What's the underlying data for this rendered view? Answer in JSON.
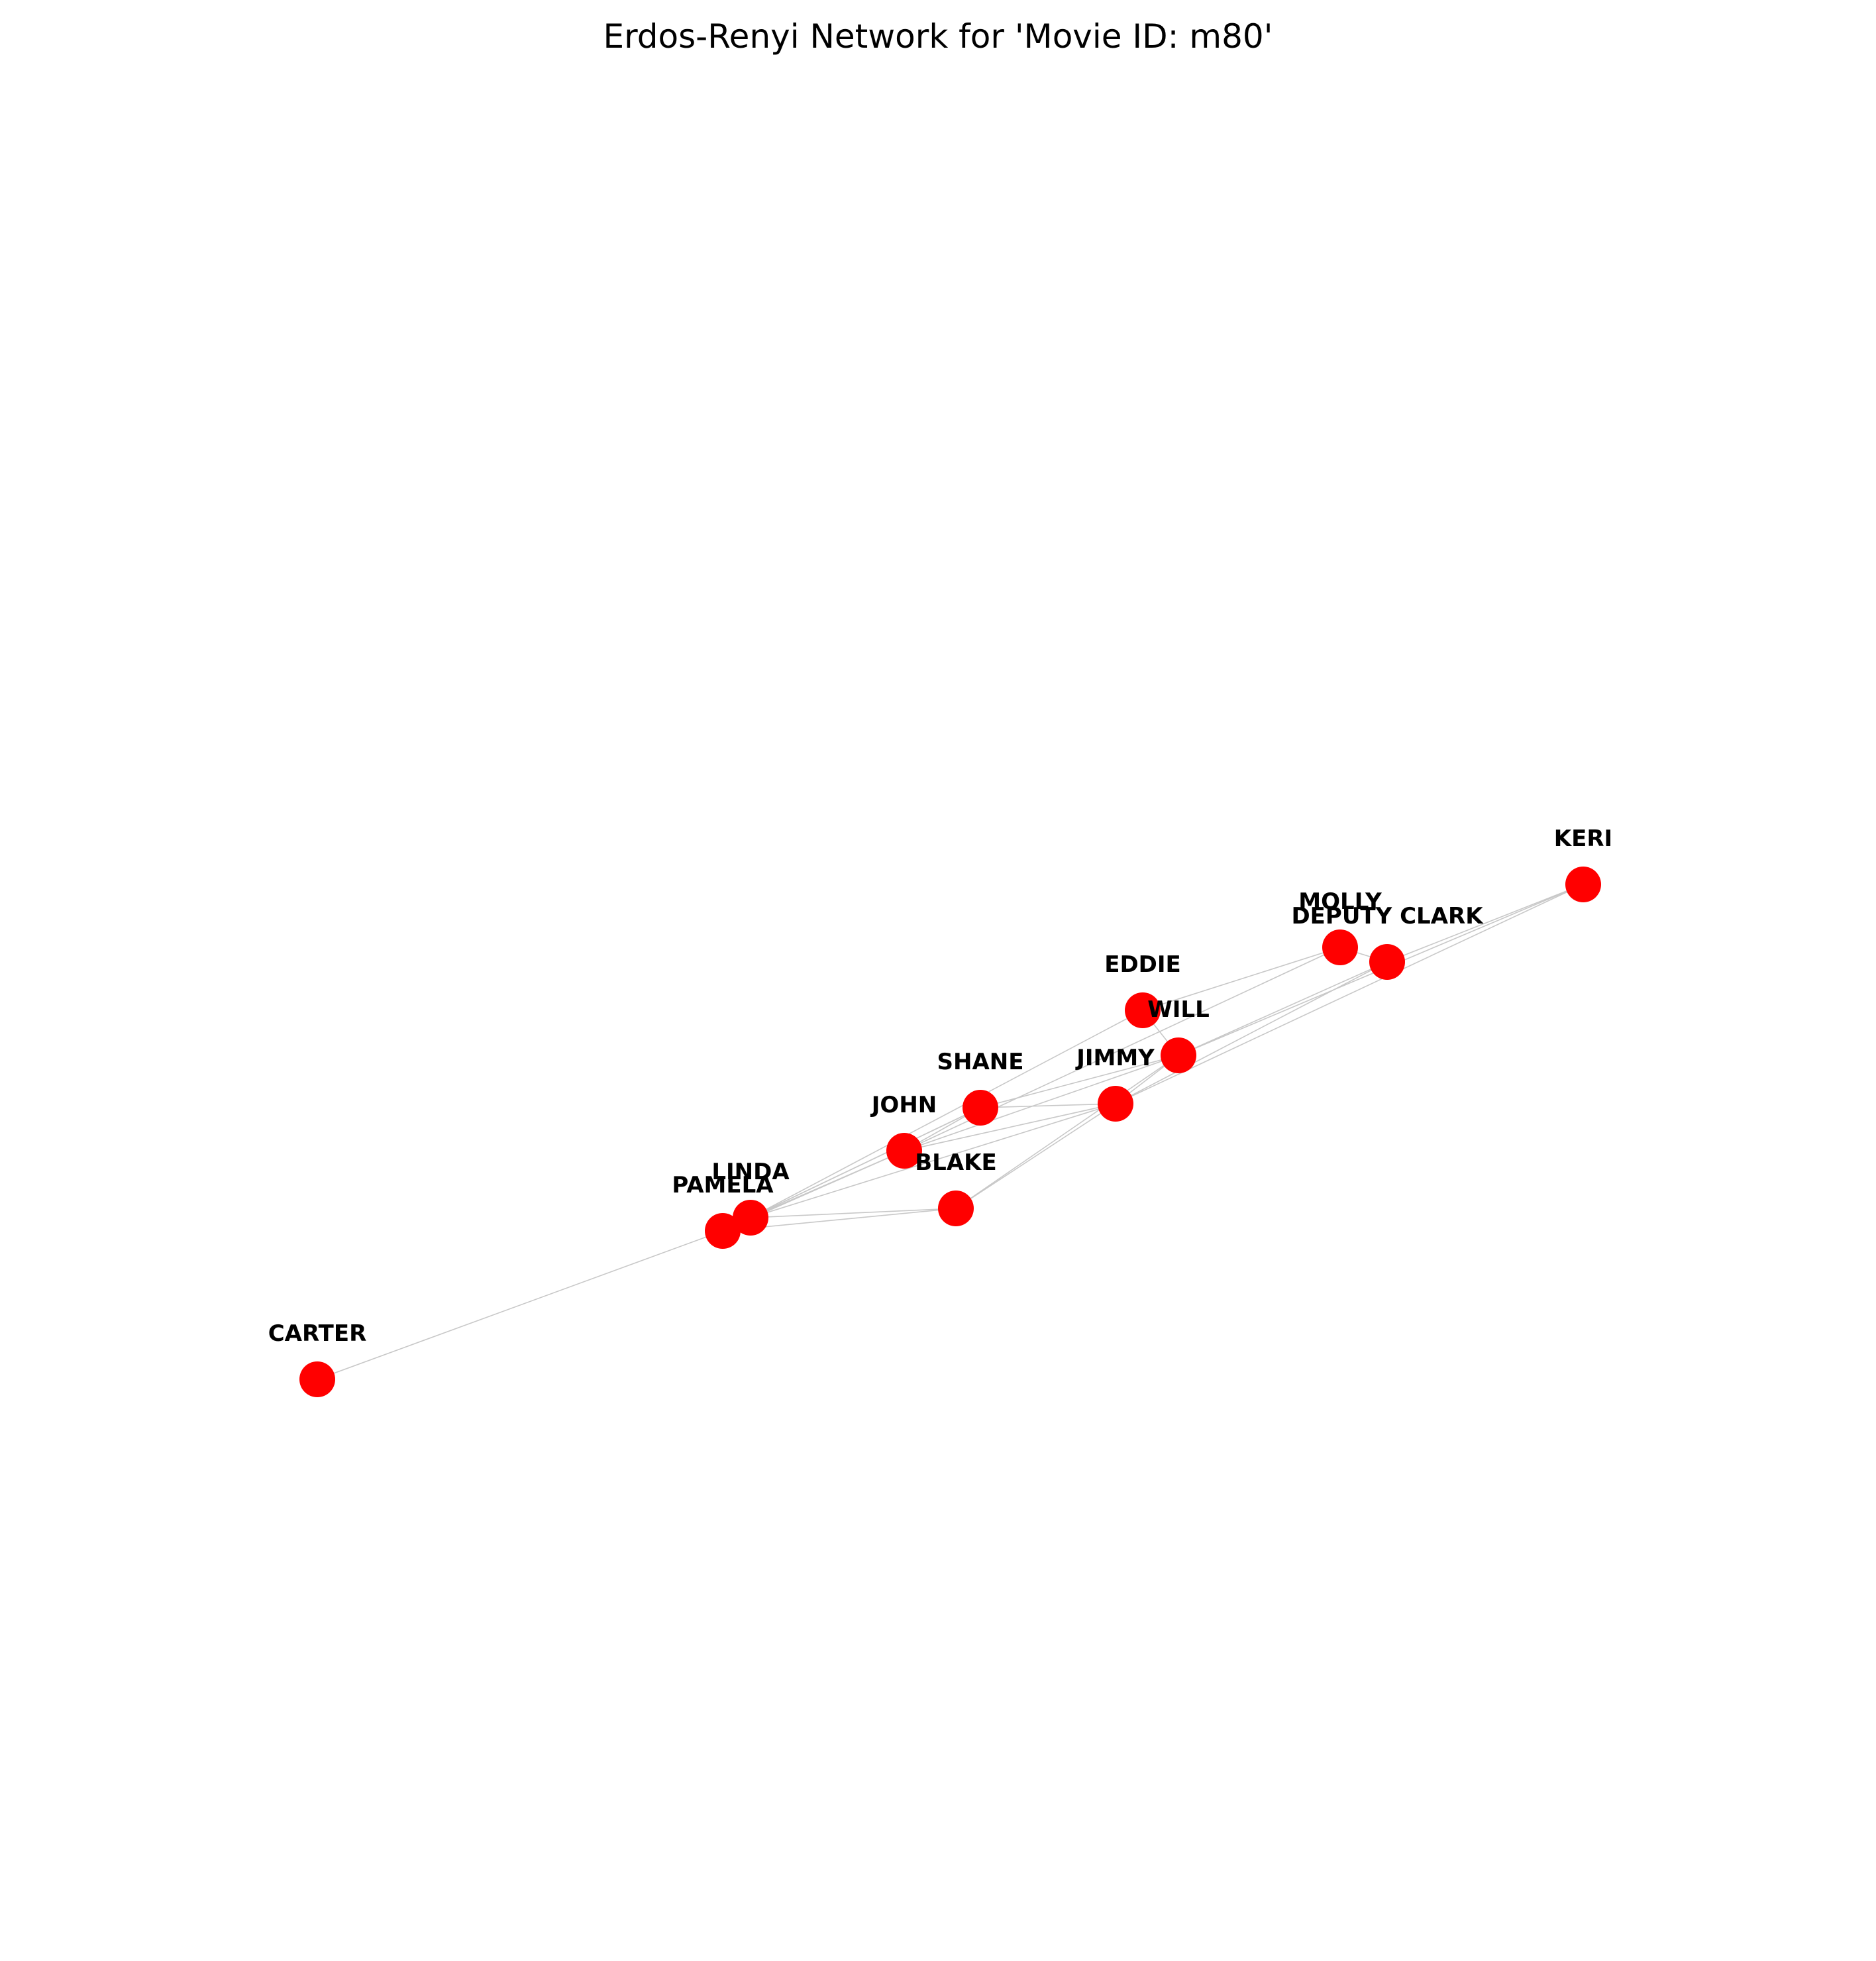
{
  "title": "Erdos-Renyi Network for 'Movie ID: m80'",
  "style": {
    "node_color": "#ff0000",
    "edge_color": "#c8c8c8",
    "label_color": "#000000"
  },
  "nodes": [
    {
      "id": "KERI",
      "label": "KERI"
    },
    {
      "id": "MOLLY",
      "label": "MOLLY"
    },
    {
      "id": "DEPUTY CLARK",
      "label": "DEPUTY CLARK"
    },
    {
      "id": "EDDIE",
      "label": "EDDIE"
    },
    {
      "id": "WILL",
      "label": "WILL"
    },
    {
      "id": "SHANE",
      "label": "SHANE"
    },
    {
      "id": "JIMMY",
      "label": "JIMMY"
    },
    {
      "id": "JOHN",
      "label": "JOHN"
    },
    {
      "id": "BLAKE",
      "label": "BLAKE"
    },
    {
      "id": "LINDA",
      "label": "LINDA"
    },
    {
      "id": "PAMELA",
      "label": "PAMELA"
    },
    {
      "id": "CARTER",
      "label": "CARTER"
    }
  ],
  "edges": [
    [
      "CARTER",
      "PAMELA"
    ],
    [
      "PAMELA",
      "LINDA"
    ],
    [
      "PAMELA",
      "BLAKE"
    ],
    [
      "PAMELA",
      "JOHN"
    ],
    [
      "PAMELA",
      "SHANE"
    ],
    [
      "LINDA",
      "BLAKE"
    ],
    [
      "LINDA",
      "JOHN"
    ],
    [
      "LINDA",
      "SHANE"
    ],
    [
      "LINDA",
      "JIMMY"
    ],
    [
      "LINDA",
      "EDDIE"
    ],
    [
      "JOHN",
      "SHANE"
    ],
    [
      "JOHN",
      "JIMMY"
    ],
    [
      "JOHN",
      "WILL"
    ],
    [
      "JOHN",
      "MOLLY"
    ],
    [
      "SHANE",
      "JIMMY"
    ],
    [
      "SHANE",
      "WILL"
    ],
    [
      "BLAKE",
      "JIMMY"
    ],
    [
      "BLAKE",
      "WILL"
    ],
    [
      "JIMMY",
      "WILL"
    ],
    [
      "JIMMY",
      "DEPUTY CLARK"
    ],
    [
      "WILL",
      "DEPUTY CLARK"
    ],
    [
      "WILL",
      "KERI"
    ],
    [
      "EDDIE",
      "MOLLY"
    ],
    [
      "EDDIE",
      "WILL"
    ],
    [
      "MOLLY",
      "DEPUTY CLARK"
    ],
    [
      "DEPUTY CLARK",
      "KERI"
    ],
    [
      "JIMMY",
      "KERI"
    ]
  ]
}
